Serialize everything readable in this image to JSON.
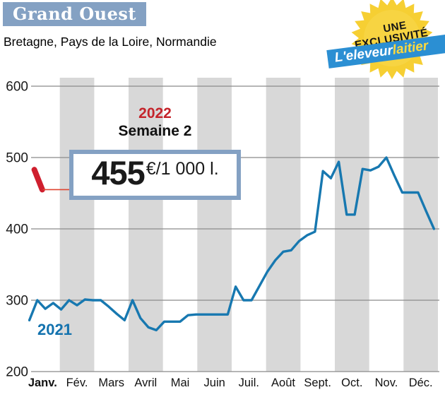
{
  "header": {
    "title": "Grand Ouest",
    "subtitle": "Bretagne, Pays de la Loire, Normandie"
  },
  "badge": {
    "line1": "UNE",
    "line2": "EXCLUSIVITÉ",
    "brand_part1": "L'eleveur",
    "brand_part2": "laitier"
  },
  "callout": {
    "year": "2022",
    "week": "Semaine 2",
    "value": "455",
    "unit": "€/1 000 l."
  },
  "labels": {
    "year_2021": "2021"
  },
  "colors": {
    "title_bg": "#84a1c3",
    "box_border": "#84a1c3",
    "line_blue": "#1778b0",
    "year2021_blue": "#1372ae",
    "red": "#cf1f2e",
    "red_light": "#df4430",
    "red_text": "#c4242b",
    "band": "#d8d8d8",
    "grid": "#8b8b8b",
    "badge_yellow": "#f6cf33",
    "badge_inner": "#f8d84e",
    "banner_blue": "#2b8fd3",
    "brand_yellow": "#ffd83c"
  },
  "chart_data": {
    "type": "line",
    "title": "Grand Ouest",
    "unit": "€/1 000 l.",
    "x_resolution": "semaine (52 semaines)",
    "categories": [
      "Janv.",
      "Fév.",
      "Mars",
      "Avril",
      "Mai",
      "Juin",
      "Juil.",
      "Août",
      "Sept.",
      "Oct.",
      "Nov.",
      "Déc."
    ],
    "yticks": [
      600,
      500,
      400,
      300,
      200
    ],
    "ylim": [
      200,
      600
    ],
    "grid": true,
    "alternating_month_bands": true,
    "series": [
      {
        "name": "2021",
        "color": "#1778b0",
        "weekly_values": [
          272,
          300,
          288,
          296,
          287,
          300,
          293,
          301,
          300,
          300,
          291,
          281,
          272,
          300,
          275,
          262,
          258,
          270,
          270,
          270,
          279,
          280,
          280,
          280,
          280,
          280,
          319,
          300,
          300,
          320,
          340,
          356,
          368,
          370,
          383,
          391,
          396,
          481,
          471,
          494,
          420,
          420,
          484,
          482,
          487,
          500,
          475,
          451,
          451,
          451,
          425,
          400
        ]
      },
      {
        "name": "2022",
        "color": "#cf1f2e",
        "weeks": [
          1,
          2
        ],
        "values": [
          483,
          455
        ]
      }
    ],
    "annotation": {
      "year": "2022",
      "week": "Semaine 2",
      "value": 455,
      "unit": "€/1 000 l."
    }
  }
}
